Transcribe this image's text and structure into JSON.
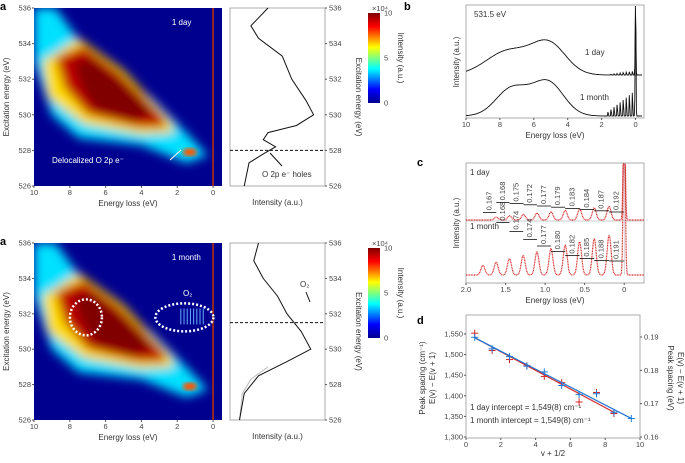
{
  "panel_labels": {
    "a1": "a",
    "a2": "a",
    "b": "b",
    "c": "c",
    "d": "d"
  },
  "colors": {
    "day": "#d62728",
    "month": "#1f77d4",
    "heat_bg": "#00008f"
  },
  "chart_data": [
    {
      "id": "a-top-map",
      "type": "heatmap",
      "label": "1 day",
      "annotation": "Delocalized O 2p e⁻",
      "xlabel": "Energy loss (eV)",
      "ylabel": "Excitation energy (eV)",
      "xlim": [
        10,
        -0.5
      ],
      "ylim": [
        526,
        536
      ],
      "xticks": [
        "10",
        "8",
        "6",
        "4",
        "2",
        "0"
      ],
      "yticks": [
        "526",
        "528",
        "530",
        "532",
        "534",
        "536"
      ],
      "colorbar": {
        "label": "Intensity (a.u.)",
        "exponent": "×10⁴",
        "ticks": [
          "0",
          "5",
          "10"
        ],
        "colormap": "jet"
      }
    },
    {
      "id": "a-top-profile",
      "type": "line",
      "xlabel": "Intensity (a.u.)",
      "ylabel": "Excitation energy (eV)",
      "annotation": "O 2p e⁻ holes",
      "hline": 528,
      "yticks": [
        "526",
        "528",
        "530",
        "532",
        "534",
        "536"
      ],
      "points": [
        [
          0.15,
          526
        ],
        [
          0.2,
          527.3
        ],
        [
          0.35,
          527.8
        ],
        [
          0.48,
          528.2
        ],
        [
          0.35,
          528.6
        ],
        [
          0.4,
          529
        ],
        [
          0.7,
          529.4
        ],
        [
          0.88,
          530
        ],
        [
          0.8,
          530.8
        ],
        [
          0.65,
          532
        ],
        [
          0.55,
          533.3
        ],
        [
          0.3,
          534.3
        ],
        [
          0.22,
          535
        ],
        [
          0.4,
          536
        ]
      ]
    },
    {
      "id": "a-bottom-map",
      "type": "heatmap",
      "label": "1 month",
      "annotation": "O₂",
      "xlabel": "Energy loss (eV)",
      "ylabel": "Excitation energy (eV)",
      "xlim": [
        10,
        -0.5
      ],
      "ylim": [
        526,
        536
      ],
      "xticks": [
        "10",
        "8",
        "6",
        "4",
        "2",
        "0"
      ],
      "yticks": [
        "526",
        "528",
        "530",
        "532",
        "534",
        "536"
      ],
      "colorbar": {
        "label": "Intensity (a.u.)",
        "exponent": "×10⁴",
        "ticks": [
          "0",
          "5",
          "10"
        ],
        "colormap": "jet"
      }
    },
    {
      "id": "a-bottom-profile",
      "type": "line",
      "xlabel": "Intensity (a.u.)",
      "ylabel": "Excitation energy (eV)",
      "annotation": "O₂",
      "hline": 531.5,
      "yticks": [
        "526",
        "528",
        "530",
        "532",
        "534",
        "536"
      ],
      "points": [
        [
          0.1,
          526
        ],
        [
          0.15,
          527.5
        ],
        [
          0.3,
          528.5
        ],
        [
          0.6,
          529.3
        ],
        [
          0.85,
          530
        ],
        [
          0.75,
          531
        ],
        [
          0.6,
          532
        ],
        [
          0.5,
          533
        ],
        [
          0.35,
          534
        ],
        [
          0.25,
          535
        ],
        [
          0.3,
          536
        ]
      ]
    },
    {
      "id": "b",
      "type": "line",
      "title": "531.5 eV",
      "xlabel": "Energy loss (eV)",
      "ylabel": "Intensity (a.u.)",
      "xlim": [
        10,
        -0.5
      ],
      "xticks": [
        "10",
        "8",
        "6",
        "4",
        "2",
        "0"
      ],
      "series": [
        {
          "name": "1 day"
        },
        {
          "name": "1 month"
        }
      ]
    },
    {
      "id": "c",
      "type": "line",
      "xlabel": "Energy loss (eV)",
      "ylabel": "Intensity (a.u.)",
      "xlim": [
        2.0,
        -0.25
      ],
      "xticks": [
        "2.0",
        "1.5",
        "1.0",
        "0.5",
        "0"
      ],
      "series": [
        {
          "name": "1 day",
          "spacings": [
            "0.168",
            "0.175",
            "0.172",
            "0.177",
            "0.179",
            "0.183",
            "0.184",
            "0.187",
            "0.192"
          ]
        },
        {
          "name": "1 month",
          "spacings": [
            "0.167",
            "0.168",
            "0.174",
            "0.174",
            "0.177",
            "0.180",
            "0.182",
            "0.185",
            "0.188",
            "0.191"
          ]
        }
      ]
    },
    {
      "id": "d",
      "type": "scatter",
      "xlabel": "v + 1/2",
      "ylabel": "Peak spacing (cm⁻¹)",
      "ylabel2": "E(v) − E(v + 1)",
      "y2label": "Peak spacing (eV)",
      "y2label2": "E(v) − E(v + 1)",
      "xlim": [
        0,
        10
      ],
      "ylim": [
        1300,
        1550
      ],
      "y2lim": [
        0.16,
        0.19
      ],
      "xticks": [
        "0",
        "2",
        "4",
        "6",
        "8",
        "10"
      ],
      "yticks": [
        "1,300",
        "1,350",
        "1,400",
        "1,450",
        "1,500",
        "1,550"
      ],
      "y2ticks": [
        "0.16",
        "0.17",
        "0.18",
        "0.19"
      ],
      "annotations": [
        "1 day intercept = 1,549(8) cm⁻¹",
        "1 month intercept = 1,549(8) cm⁻¹"
      ],
      "series": [
        {
          "name": "1 day",
          "x": [
            0.5,
            1.5,
            2.5,
            3.5,
            4.5,
            5.5,
            6.5,
            7.5,
            8.5
          ],
          "y": [
            1552,
            1510,
            1488,
            1473,
            1447,
            1432,
            1385,
            1408,
            1357
          ],
          "fit": [
            [
              0.5,
              1541
            ],
            [
              8.5,
              1360
            ]
          ]
        },
        {
          "name": "1 month",
          "x": [
            0.5,
            1.5,
            2.5,
            3.5,
            4.5,
            5.5,
            6.5,
            7.5,
            8.5,
            9.5
          ],
          "y": [
            1542,
            1514,
            1495,
            1472,
            1458,
            1425,
            1403,
            1405,
            1360,
            1345
          ],
          "fit": [
            [
              0.5,
              1541
            ],
            [
              9.5,
              1345
            ]
          ]
        }
      ]
    }
  ]
}
